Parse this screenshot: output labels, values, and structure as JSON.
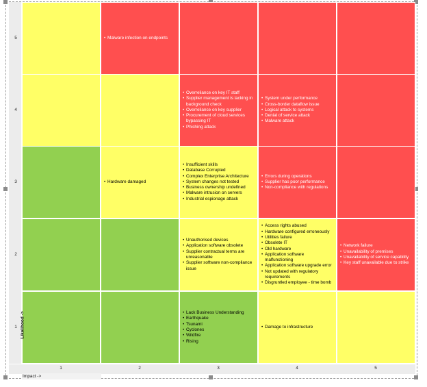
{
  "chart_data": {
    "type": "heatmap",
    "title": "",
    "xlabel": "Impact ->",
    "ylabel": "Likelihood ->",
    "x_categories": [
      "1",
      "2",
      "3",
      "4",
      "5"
    ],
    "y_categories": [
      "1",
      "2",
      "3",
      "4",
      "5"
    ],
    "colors": {
      "green": "#92d050",
      "yellow": "#ffff66",
      "red": "#ff4f4f"
    },
    "cells": [
      {
        "likelihood": 5,
        "impact": 1,
        "color": "yellow",
        "items": []
      },
      {
        "likelihood": 5,
        "impact": 2,
        "color": "red",
        "items": [
          "Malware infection on endpoints"
        ]
      },
      {
        "likelihood": 5,
        "impact": 3,
        "color": "red",
        "items": []
      },
      {
        "likelihood": 5,
        "impact": 4,
        "color": "red",
        "items": []
      },
      {
        "likelihood": 5,
        "impact": 5,
        "color": "red",
        "items": []
      },
      {
        "likelihood": 4,
        "impact": 1,
        "color": "yellow",
        "items": []
      },
      {
        "likelihood": 4,
        "impact": 2,
        "color": "yellow",
        "items": []
      },
      {
        "likelihood": 4,
        "impact": 3,
        "color": "red",
        "items": [
          "Overreliance on key IT staff",
          "Supplier management is lacking in background check",
          "Overreliance on key supplier",
          "Procurement of cloud services bypassing IT",
          "Phishing attack"
        ]
      },
      {
        "likelihood": 4,
        "impact": 4,
        "color": "red",
        "items": [
          "System under performance",
          "Cross-border dataflow issue",
          "Logical attack to systems",
          "Denial of service attack",
          "Malware attack"
        ]
      },
      {
        "likelihood": 4,
        "impact": 5,
        "color": "red",
        "items": []
      },
      {
        "likelihood": 3,
        "impact": 1,
        "color": "green",
        "items": []
      },
      {
        "likelihood": 3,
        "impact": 2,
        "color": "yellow",
        "items": [
          "Hardware damaged"
        ]
      },
      {
        "likelihood": 3,
        "impact": 3,
        "color": "yellow",
        "items": [
          "Insufficient skills",
          "Database Corrupted",
          "Complex Enterprise Architecture",
          "System changes not tested",
          "Business ownership undefined",
          "Malware intrusion on servers",
          "Industrial espionage attack"
        ]
      },
      {
        "likelihood": 3,
        "impact": 4,
        "color": "red",
        "items": [
          "Errors during operations",
          "Supplier has poor performance",
          "Non-compliance with regulations"
        ]
      },
      {
        "likelihood": 3,
        "impact": 5,
        "color": "red",
        "items": []
      },
      {
        "likelihood": 2,
        "impact": 1,
        "color": "green",
        "items": []
      },
      {
        "likelihood": 2,
        "impact": 2,
        "color": "green",
        "items": []
      },
      {
        "likelihood": 2,
        "impact": 3,
        "color": "yellow",
        "items": [
          "Unauthorised devices",
          "Application software obsolete",
          "Supplier contractual terms are unreasonable",
          "Supplier software non-compliance issue"
        ]
      },
      {
        "likelihood": 2,
        "impact": 4,
        "color": "yellow",
        "items": [
          "Access rights abused",
          "Hardware configured erroneously",
          "Utilities failure",
          "Obsolete IT",
          "Old hardware",
          "Application software malfunctioning",
          "Application software upgrade error",
          "Not updated with regulatory requirements",
          "Disgruntled employee - time bomb"
        ]
      },
      {
        "likelihood": 2,
        "impact": 5,
        "color": "red",
        "items": [
          "Network failure",
          "Unavailability of premises",
          "Unavailability of service capability",
          "Key staff unavailable due to strike"
        ]
      },
      {
        "likelihood": 1,
        "impact": 1,
        "color": "green",
        "items": []
      },
      {
        "likelihood": 1,
        "impact": 2,
        "color": "green",
        "items": []
      },
      {
        "likelihood": 1,
        "impact": 3,
        "color": "green",
        "items": [
          "Lack Business Understanding",
          "Earthquake",
          "Tsunami",
          "Cyclones",
          "Wildfire",
          "Rising"
        ]
      },
      {
        "likelihood": 1,
        "impact": 4,
        "color": "yellow",
        "items": [
          "Damage to infrastructure"
        ]
      },
      {
        "likelihood": 1,
        "impact": 5,
        "color": "yellow",
        "items": []
      }
    ]
  }
}
